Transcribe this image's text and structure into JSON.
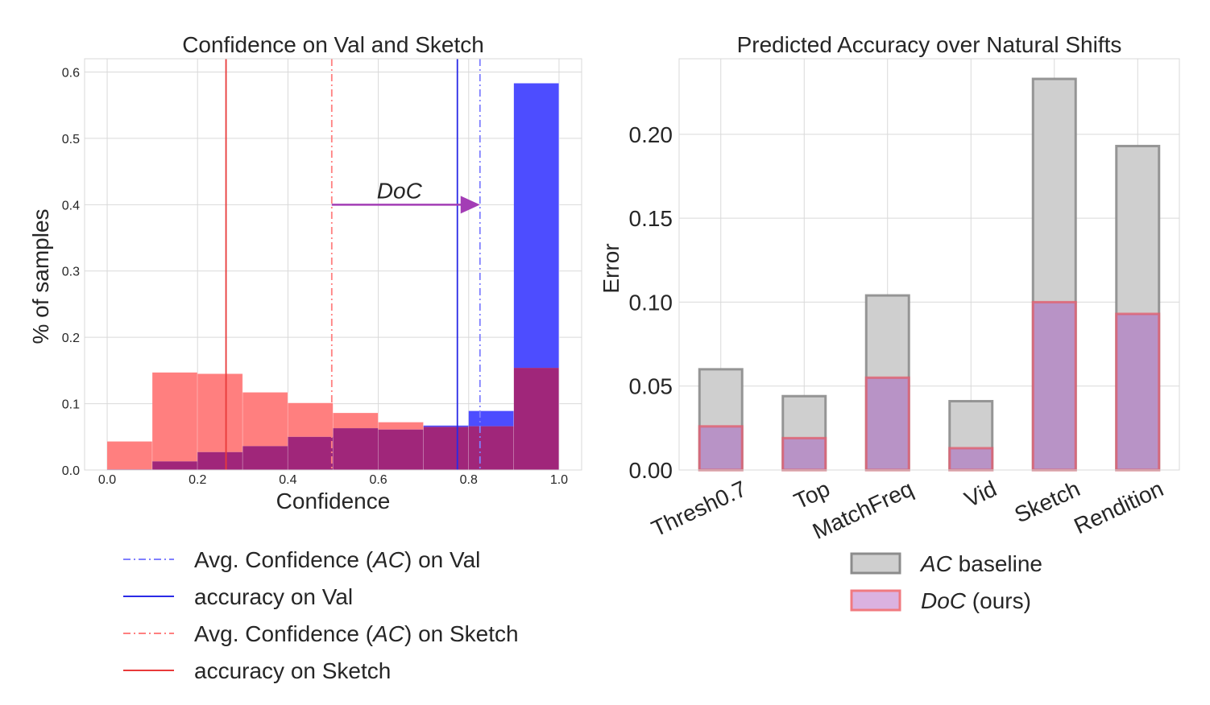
{
  "chart_data": [
    {
      "type": "bar",
      "title": "Confidence on Val and Sketch",
      "xlabel": "Confidence",
      "ylabel": "% of samples",
      "xlim": [
        -0.05,
        1.05
      ],
      "ylim": [
        0,
        0.62
      ],
      "xticks": [
        "0.0",
        "0.2",
        "0.4",
        "0.6",
        "0.8",
        "1.0"
      ],
      "yticks": [
        "0.0",
        "0.1",
        "0.2",
        "0.3",
        "0.4",
        "0.5",
        "0.6"
      ],
      "bin_edges": [
        0.0,
        0.1,
        0.2,
        0.3,
        0.4,
        0.5,
        0.6,
        0.7,
        0.8,
        0.9,
        1.0
      ],
      "series": [
        {
          "name": "Sketch",
          "color": "#ff7f7f",
          "values": [
            0.043,
            0.147,
            0.145,
            0.117,
            0.101,
            0.086,
            0.072,
            0.065,
            0.066,
            0.154
          ]
        },
        {
          "name": "Val",
          "color": "#4d4dff",
          "values": [
            0.001,
            0.013,
            0.027,
            0.036,
            0.05,
            0.063,
            0.061,
            0.067,
            0.089,
            0.583
          ]
        }
      ],
      "overlap_color": "#a0267a",
      "vlines": [
        {
          "name": "Avg. Confidence (AC) on Val",
          "x": 0.825,
          "color": "#7f7fff",
          "style": "dashdot"
        },
        {
          "name": "accuracy on Val",
          "x": 0.775,
          "color": "#2a2ae6",
          "style": "solid"
        },
        {
          "name": "Avg. Confidence (AC)  on Sketch",
          "x": 0.497,
          "color": "#ff8080",
          "style": "dashdot"
        },
        {
          "name": "accuracy on Sketch",
          "x": 0.263,
          "color": "#e83a3a",
          "style": "solid"
        }
      ],
      "annotation": {
        "text": "DoC",
        "x_from": 0.497,
        "x_to": 0.825,
        "y": 0.4,
        "color": "#a33db5"
      },
      "legend": [
        {
          "prefix": "Avg. Confidence (",
          "italic": "AC",
          "suffix": ") on Val"
        },
        {
          "prefix": "accuracy on Val",
          "italic": "",
          "suffix": ""
        },
        {
          "prefix": "Avg. Confidence (",
          "italic": "AC",
          "suffix": ")  on Sketch"
        },
        {
          "prefix": "accuracy on Sketch",
          "italic": "",
          "suffix": ""
        }
      ]
    },
    {
      "type": "bar",
      "title": "Predicted Accuracy over Natural Shifts",
      "xlabel": "",
      "ylabel": "Error",
      "ylim": [
        0,
        0.245
      ],
      "yticks": [
        "0.00",
        "0.05",
        "0.10",
        "0.15",
        "0.20"
      ],
      "categories": [
        "Thresh0.7",
        "Top",
        "MatchFreq",
        "Vid",
        "Sketch",
        "Rendition"
      ],
      "series": [
        {
          "name": "AC baseline",
          "values": [
            0.06,
            0.044,
            0.104,
            0.041,
            0.233,
            0.193
          ],
          "fill": "#cfcfcf",
          "edge": "#8c8c8c"
        },
        {
          "name": "DoC (ours)",
          "values": [
            0.026,
            0.019,
            0.055,
            0.013,
            0.1,
            0.093
          ],
          "fill": "#b488c4",
          "edge": "#e06070"
        }
      ],
      "legend": [
        {
          "italic": "AC",
          "suffix": " baseline",
          "fill": "#cfcfcf",
          "edge": "#8c8c8c"
        },
        {
          "italic": "DoC",
          "suffix": " (ours)",
          "fill": "#dbb2e0",
          "edge": "#f07a80"
        }
      ]
    }
  ]
}
